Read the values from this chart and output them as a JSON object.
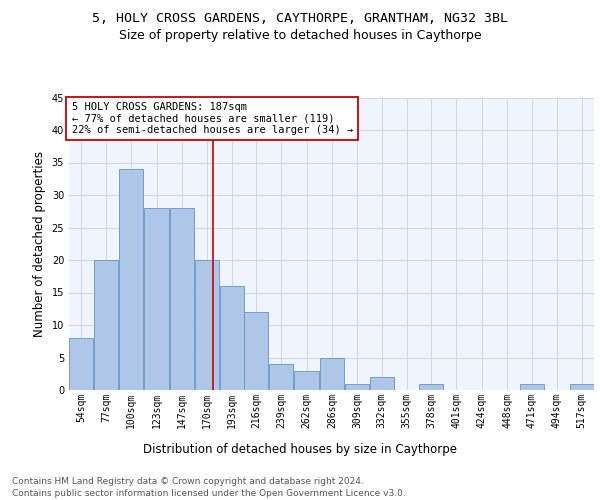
{
  "title": "5, HOLY CROSS GARDENS, CAYTHORPE, GRANTHAM, NG32 3BL",
  "subtitle": "Size of property relative to detached houses in Caythorpe",
  "xlabel": "Distribution of detached houses by size in Caythorpe",
  "ylabel": "Number of detached properties",
  "bar_lefts": [
    54,
    77,
    100,
    123,
    147,
    170,
    193,
    216,
    239,
    262,
    286,
    309,
    332,
    355,
    378,
    401,
    424,
    448,
    471,
    494,
    517
  ],
  "bar_widths": [
    23,
    23,
    23,
    24,
    23,
    23,
    23,
    23,
    23,
    24,
    23,
    23,
    23,
    23,
    23,
    23,
    24,
    23,
    23,
    23,
    23
  ],
  "bar_values": [
    8,
    20,
    34,
    28,
    28,
    20,
    16,
    12,
    4,
    3,
    5,
    1,
    2,
    0,
    1,
    0,
    0,
    0,
    1,
    0,
    1
  ],
  "bar_color": "#aec6e8",
  "bar_edge_color": "#6096c8",
  "reference_line_x": 187,
  "reference_line_color": "#cc0000",
  "annotation_text": "5 HOLY CROSS GARDENS: 187sqm\n← 77% of detached houses are smaller (119)\n22% of semi-detached houses are larger (34) →",
  "annotation_box_color": "#cc0000",
  "ylim": [
    0,
    45
  ],
  "yticks": [
    0,
    5,
    10,
    15,
    20,
    25,
    30,
    35,
    40,
    45
  ],
  "grid_color": "#d0d8e8",
  "background_color": "#f0f4fc",
  "footer_line1": "Contains HM Land Registry data © Crown copyright and database right 2024.",
  "footer_line2": "Contains public sector information licensed under the Open Government Licence v3.0.",
  "title_fontsize": 9.5,
  "subtitle_fontsize": 9,
  "annotation_fontsize": 7.5,
  "tick_fontsize": 7,
  "axis_label_fontsize": 8.5,
  "footer_fontsize": 6.5
}
